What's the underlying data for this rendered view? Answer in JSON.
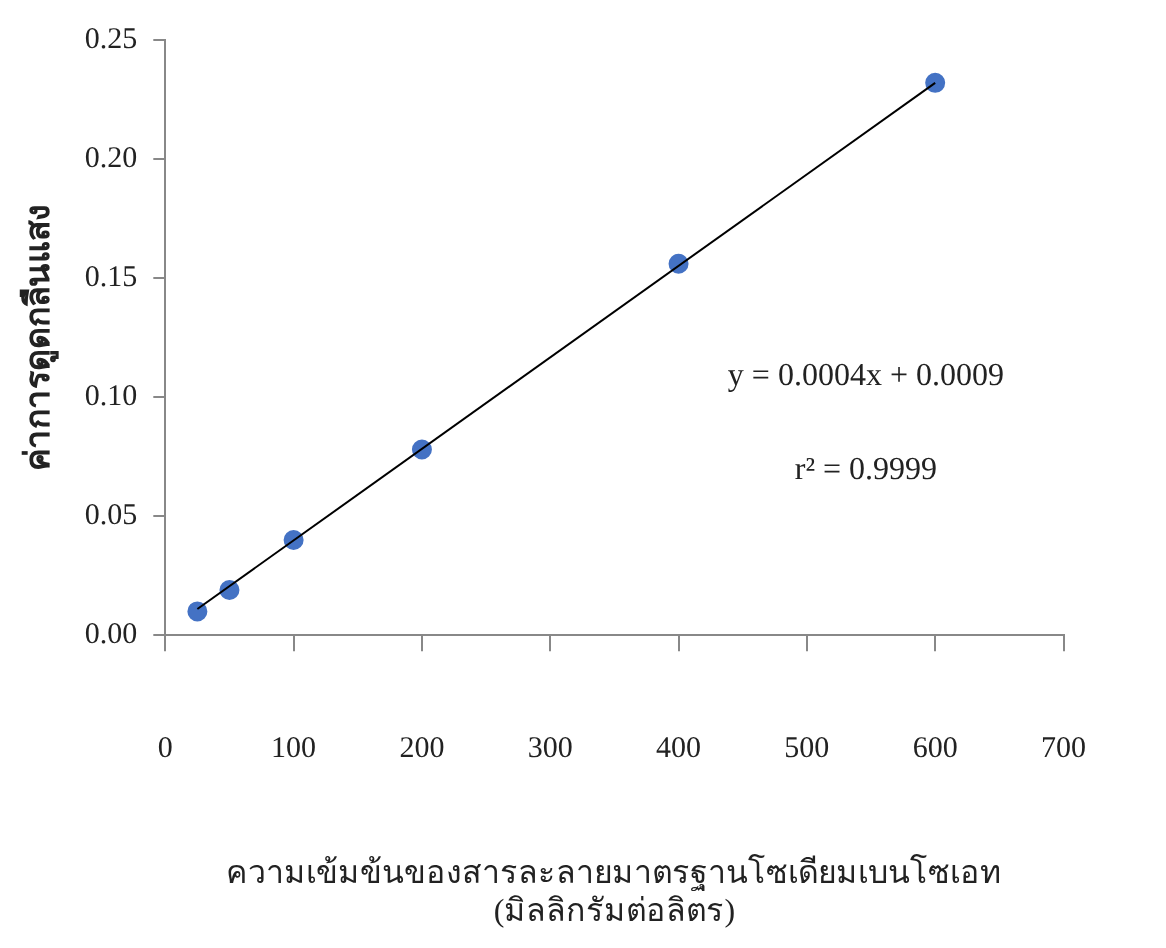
{
  "chart_data": {
    "type": "scatter",
    "xlabel": "ความเข้มข้นของสารละลายมาตรฐานโซเดียมเบนโซเอท\n(มิลลิกรัมต่อลิตร)",
    "ylabel": "ค่าการดูดกลืนแสง",
    "series": [
      {
        "color": "#4472c4",
        "marker": "circle",
        "x": [
          25,
          50,
          100,
          200,
          400,
          600
        ],
        "values": [
          0.01,
          0.019,
          0.04,
          0.078,
          0.156,
          0.232
        ]
      },
      {
        "type": "line",
        "marker": "none",
        "color": "#000000",
        "x": [
          25,
          600
        ],
        "values": [
          0.011,
          0.232
        ]
      }
    ],
    "xlim": [
      0,
      700
    ],
    "xticks": [
      0,
      100,
      200,
      300,
      400,
      500,
      600,
      700
    ],
    "ylim": [
      0,
      0.25
    ],
    "yticks": [
      {
        "value": 0,
        "label": "0.00"
      },
      {
        "value": 0.05,
        "label": "0.05"
      },
      {
        "value": 0.1,
        "label": "0.10"
      },
      {
        "value": 0.15,
        "label": "0.15"
      },
      {
        "value": 0.2,
        "label": "0.20"
      },
      {
        "value": 0.25,
        "label": "0.25"
      }
    ],
    "annotations": [
      "y = 0.0004x + 0.0009",
      "r² = 0.9999"
    ],
    "grid": false,
    "legend": false
  }
}
